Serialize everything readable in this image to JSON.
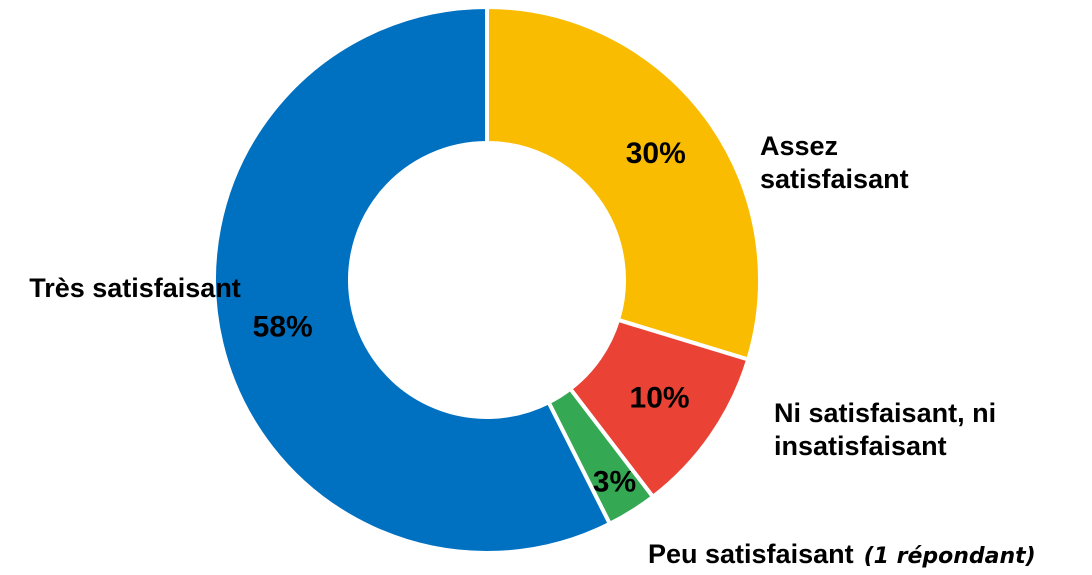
{
  "chart_data": {
    "type": "donut",
    "categories": [
      "Assez satisfaisant",
      "Ni satisfaisant, ni insatisfaisant",
      "Peu satisfaisant",
      "Très satisfaisant"
    ],
    "values": [
      30,
      10,
      3,
      58
    ],
    "value_labels": [
      "30%",
      "10%",
      "3%",
      "58%"
    ],
    "colors": [
      "#f9bc00",
      "#ea4335",
      "#34a853",
      "#0070c0"
    ],
    "annotation": "(1 répondant)"
  }
}
